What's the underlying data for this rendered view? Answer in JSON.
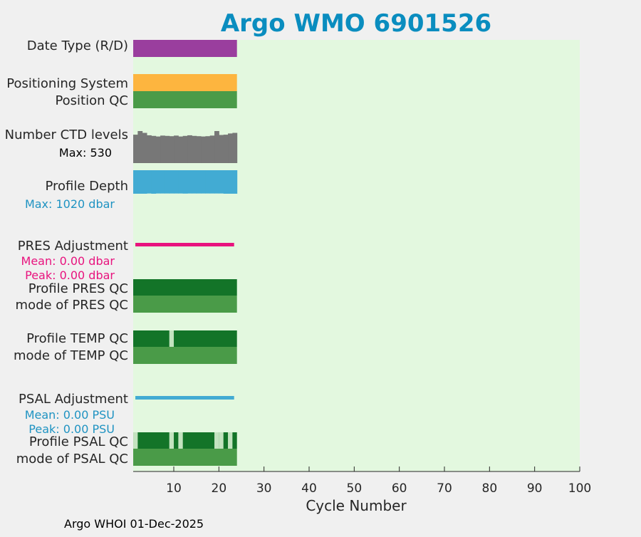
{
  "title": "Argo WMO 6901526",
  "footer": "Argo WHOI 01-Dec-2025",
  "colors": {
    "title": "#0a8dbf",
    "plot_bg": "#e3f8df",
    "date_type": "#9a3e9e",
    "positioning": "#fdb53f",
    "qc_good": "#4a9b48",
    "qc_dark": "#137428",
    "qc_light": "#c3e3bf",
    "ctd_levels": "#777777",
    "depth": "#42abd3",
    "pres_adj": "#e8137e",
    "psal_adj": "#42abd3",
    "stat_blue": "#1f93c2",
    "stat_pink": "#e8137e"
  },
  "rows": {
    "date_type": "Date Type (R/D)",
    "positioning": "Positioning System",
    "position_qc": "Position QC",
    "ctd_levels": "Number CTD levels",
    "ctd_max": "Max: 530",
    "profile_depth": "Profile Depth",
    "depth_max": "Max: 1020 dbar",
    "pres_adj": "PRES Adjustment",
    "pres_mean": "Mean: 0.00 dbar",
    "pres_peak": "Peak: 0.00 dbar",
    "profile_pres_qc": "Profile PRES QC",
    "mode_pres_qc": "mode of PRES QC",
    "profile_temp_qc": "Profile TEMP QC",
    "mode_temp_qc": "mode of TEMP QC",
    "psal_adj": "PSAL Adjustment",
    "psal_mean": "Mean: 0.00 PSU",
    "psal_peak": "Peak: 0.00 PSU",
    "profile_psal_qc": "Profile PSAL QC",
    "mode_psal_qc": "mode of PSAL QC"
  },
  "chart_data": {
    "type": "bar",
    "xlabel": "Cycle Number",
    "xlim": [
      1,
      100
    ],
    "xticks": [
      10,
      20,
      30,
      40,
      50,
      60,
      70,
      80,
      90,
      100
    ],
    "cycles": [
      1,
      23
    ],
    "ctd_levels": [
      470,
      530,
      500,
      460,
      450,
      440,
      455,
      450,
      445,
      455,
      440,
      450,
      460,
      450,
      445,
      440,
      445,
      455,
      530,
      465,
      470,
      490,
      500
    ],
    "ctd_max": 530,
    "profile_depth_dbar": [
      1020,
      1020,
      1020,
      1010,
      1020,
      1010,
      1010,
      1010,
      1010,
      1010,
      1010,
      1015,
      1010,
      1010,
      1010,
      1010,
      1010,
      1010,
      1010,
      1010,
      1020,
      1020,
      1020
    ],
    "depth_max": 1020,
    "profile_temp_qc_light_cycles": [
      9
    ],
    "profile_psal_qc_light_cycles": [
      1,
      9,
      11,
      19,
      20,
      22
    ]
  }
}
